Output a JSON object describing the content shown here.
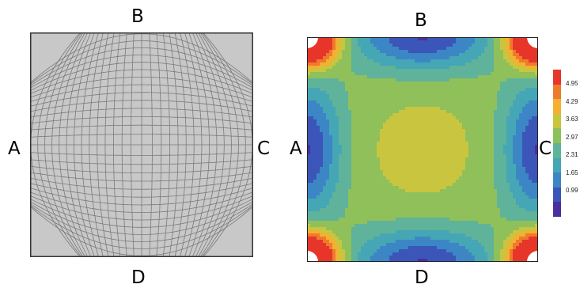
{
  "left_figure": {
    "labels": {
      "top": "B",
      "left": "A",
      "right": "C",
      "bottom": "D"
    },
    "colors": {
      "background": "#c8c8c8",
      "lines": "#7a7a7a",
      "border": "#333333"
    }
  },
  "right_figure": {
    "labels": {
      "top": "B",
      "left": "A",
      "right": "C",
      "bottom": "D"
    },
    "colorbar": {
      "ticks": [
        "4.95",
        "4.29",
        "3.63",
        "2.97",
        "2.31",
        "1.65",
        "0.99"
      ],
      "colors": [
        "#e8352a",
        "#ee7a2c",
        "#f3b031",
        "#c9c53f",
        "#8fc05a",
        "#5fb39a",
        "#45a6b5",
        "#3c86c6",
        "#3b55b8",
        "#4a2f9e"
      ]
    }
  }
}
